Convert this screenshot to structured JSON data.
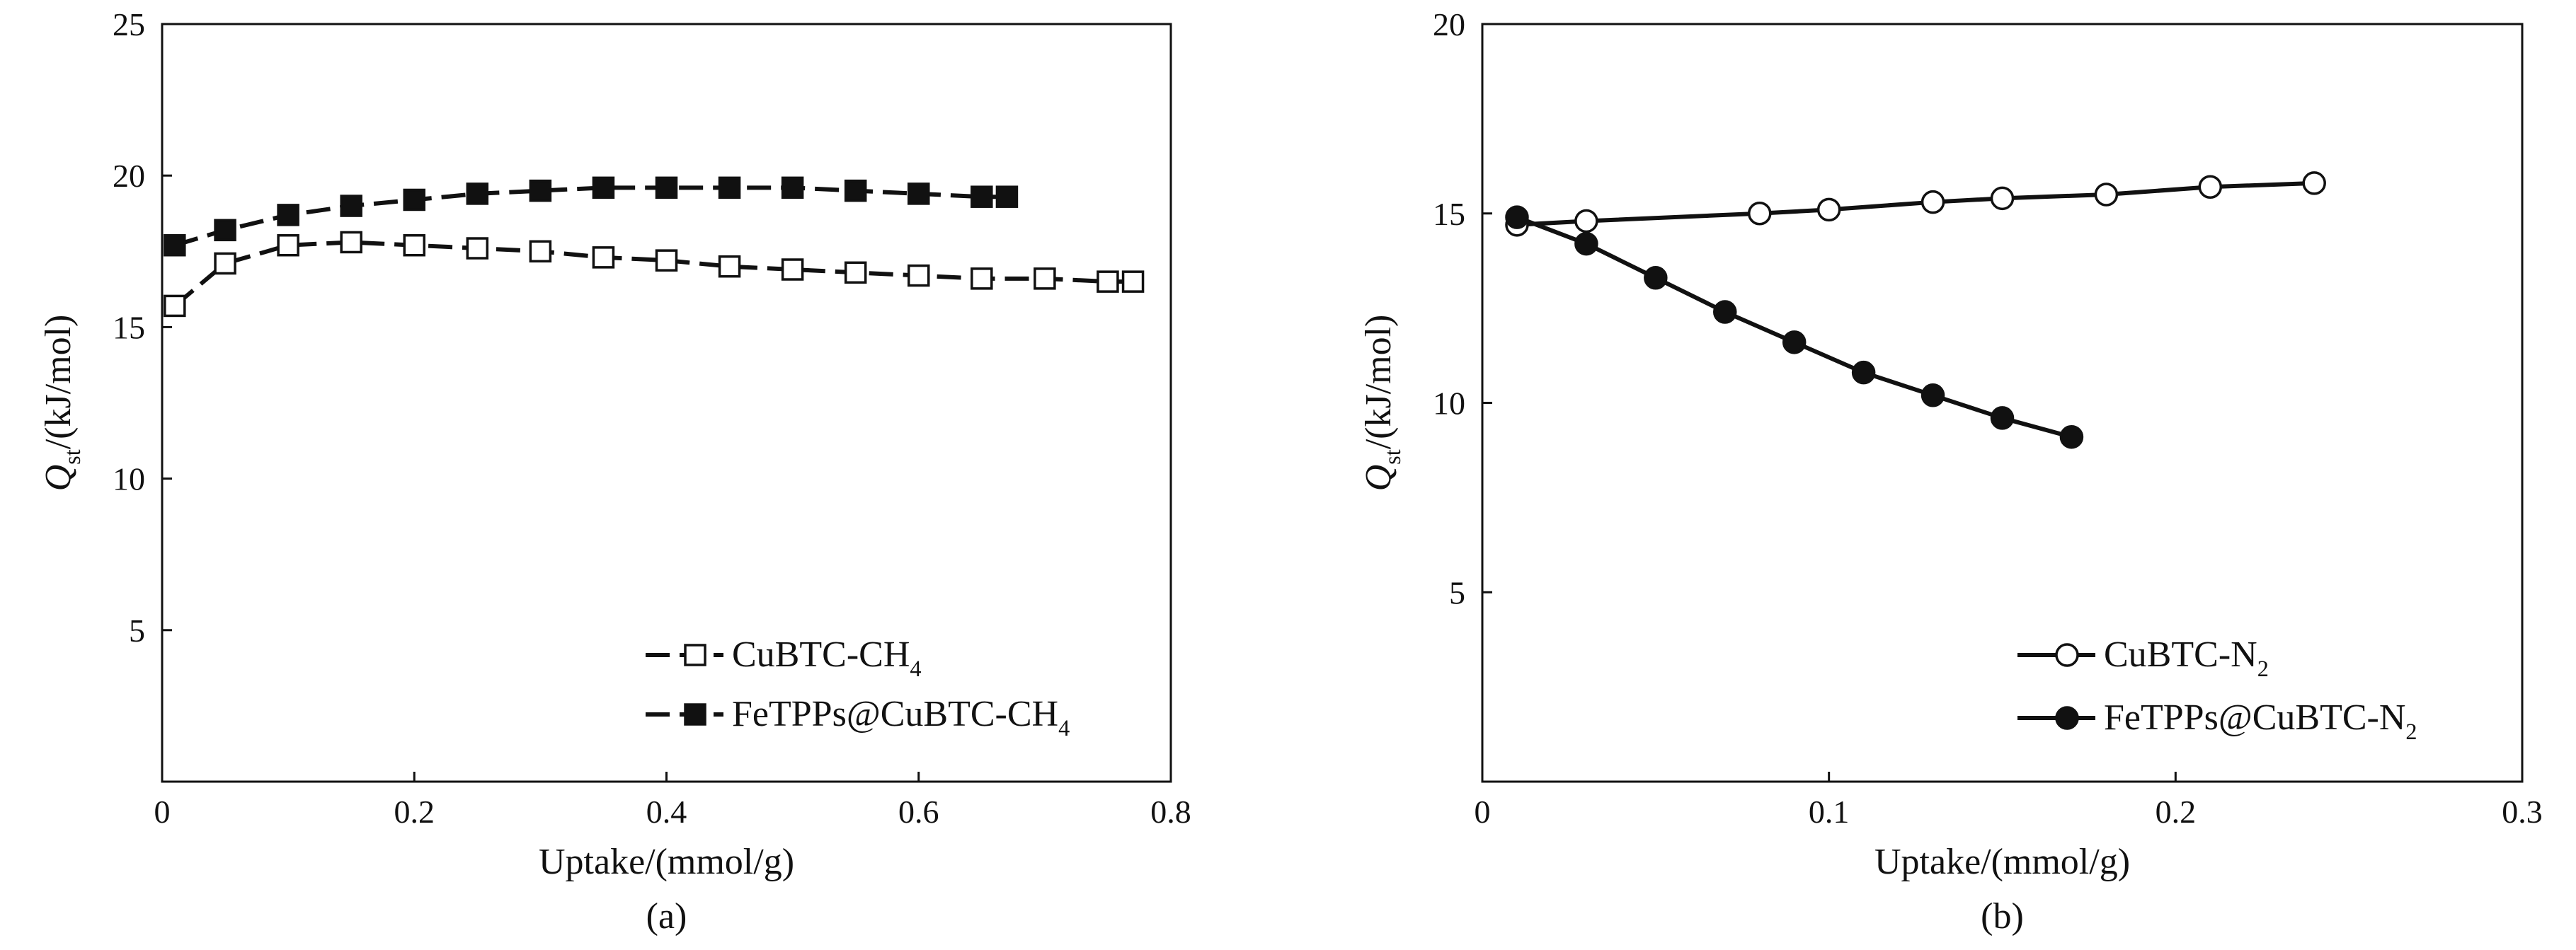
{
  "colors": {
    "ink": "#111111",
    "background": "#ffffff",
    "marker_open_fill": "#ffffff",
    "marker_filled": "#111111"
  },
  "chart_data": [
    {
      "id": "a",
      "type": "line",
      "panel_label": "(a)",
      "xlabel": "Uptake/(mmol/g)",
      "ylabel_main": "Q",
      "ylabel_sub": "st",
      "ylabel_rest": "/(kJ/mol)",
      "xlim": [
        0,
        0.8
      ],
      "ylim": [
        0,
        25
      ],
      "xticks": [
        0,
        0.2,
        0.4,
        0.6,
        0.8
      ],
      "xtick_labels": [
        "0",
        "0.2",
        "0.4",
        "0.6",
        "0.8"
      ],
      "yticks": [
        5,
        10,
        15,
        20,
        25
      ],
      "ytick_labels": [
        "5",
        "10",
        "15",
        "20",
        "25"
      ],
      "legend_position": "bottom-right",
      "series": [
        {
          "name": "CuBTC-CH4",
          "label_main": "CuBTC-CH",
          "label_sub": "4",
          "marker": "square",
          "filled": false,
          "dash": true,
          "x": [
            0.01,
            0.05,
            0.1,
            0.15,
            0.2,
            0.25,
            0.3,
            0.35,
            0.4,
            0.45,
            0.5,
            0.55,
            0.6,
            0.65,
            0.7,
            0.75,
            0.77
          ],
          "y": [
            15.7,
            17.1,
            17.7,
            17.8,
            17.7,
            17.6,
            17.5,
            17.3,
            17.2,
            17.0,
            16.9,
            16.8,
            16.7,
            16.6,
            16.6,
            16.5,
            16.5
          ]
        },
        {
          "name": "FeTPPs@CuBTC-CH4",
          "label_main": "FeTPPs@CuBTC-CH",
          "label_sub": "4",
          "marker": "square",
          "filled": true,
          "dash": true,
          "x": [
            0.01,
            0.05,
            0.1,
            0.15,
            0.2,
            0.25,
            0.3,
            0.35,
            0.4,
            0.45,
            0.5,
            0.55,
            0.6,
            0.65,
            0.67
          ],
          "y": [
            17.7,
            18.2,
            18.7,
            19.0,
            19.2,
            19.4,
            19.5,
            19.6,
            19.6,
            19.6,
            19.6,
            19.5,
            19.4,
            19.3,
            19.3
          ]
        }
      ]
    },
    {
      "id": "b",
      "type": "line",
      "panel_label": "(b)",
      "xlabel": "Uptake/(mmol/g)",
      "ylabel_main": "Q",
      "ylabel_sub": "st",
      "ylabel_rest": "/(kJ/mol)",
      "xlim": [
        0,
        0.3
      ],
      "ylim": [
        0,
        20
      ],
      "xticks": [
        0,
        0.1,
        0.2,
        0.3
      ],
      "xtick_labels": [
        "0",
        "0.1",
        "0.2",
        "0.3"
      ],
      "yticks": [
        5,
        10,
        15,
        20
      ],
      "ytick_labels": [
        "5",
        "10",
        "15",
        "20"
      ],
      "legend_position": "bottom-right",
      "series": [
        {
          "name": "CuBTC-N2",
          "label_main": "CuBTC-N",
          "label_sub": "2",
          "marker": "circle",
          "filled": false,
          "dash": false,
          "x": [
            0.01,
            0.03,
            0.08,
            0.1,
            0.13,
            0.15,
            0.18,
            0.21,
            0.24
          ],
          "y": [
            14.7,
            14.8,
            15.0,
            15.1,
            15.3,
            15.4,
            15.5,
            15.7,
            15.8
          ]
        },
        {
          "name": "FeTPPs@CuBTC-N2",
          "label_main": "FeTPPs@CuBTC-N",
          "label_sub": "2",
          "marker": "circle",
          "filled": true,
          "dash": false,
          "x": [
            0.01,
            0.03,
            0.05,
            0.07,
            0.09,
            0.11,
            0.13,
            0.15,
            0.17
          ],
          "y": [
            14.9,
            14.2,
            13.3,
            12.4,
            11.6,
            10.8,
            10.2,
            9.6,
            9.1
          ]
        }
      ]
    }
  ]
}
